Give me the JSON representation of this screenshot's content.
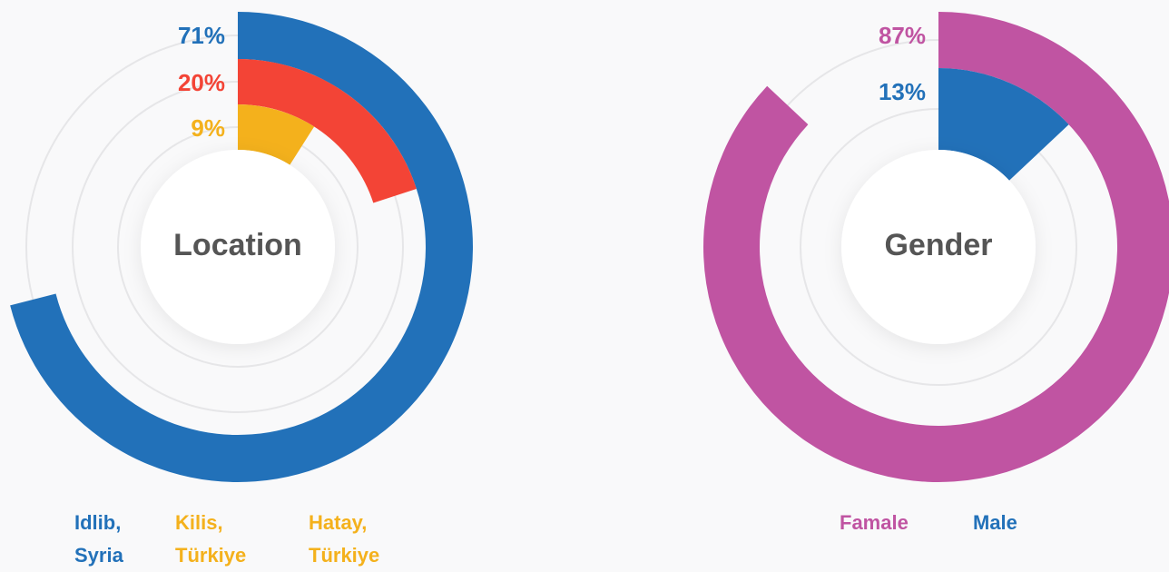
{
  "chart_data": [
    {
      "type": "radial_bar",
      "title": "Location",
      "categories": [
        "Idlib, Syria",
        "Kilis, Türkiye",
        "Hatay, Türkiye"
      ],
      "values": [
        71,
        20,
        9
      ],
      "value_labels": [
        "71%",
        "20%",
        "9%"
      ],
      "colors": [
        "#2271b9",
        "#f34436",
        "#f4b11c"
      ],
      "label_colors": [
        "#2271b9",
        "#f4b11c",
        "#f4b11c"
      ]
    },
    {
      "type": "radial_bar",
      "title": "Gender",
      "categories": [
        "Famale",
        "Male"
      ],
      "values": [
        87,
        13
      ],
      "value_labels": [
        "87%",
        "13%"
      ],
      "colors": [
        "#c054a2",
        "#2271b9"
      ],
      "label_colors": [
        "#c054a2",
        "#2271b9"
      ]
    }
  ]
}
